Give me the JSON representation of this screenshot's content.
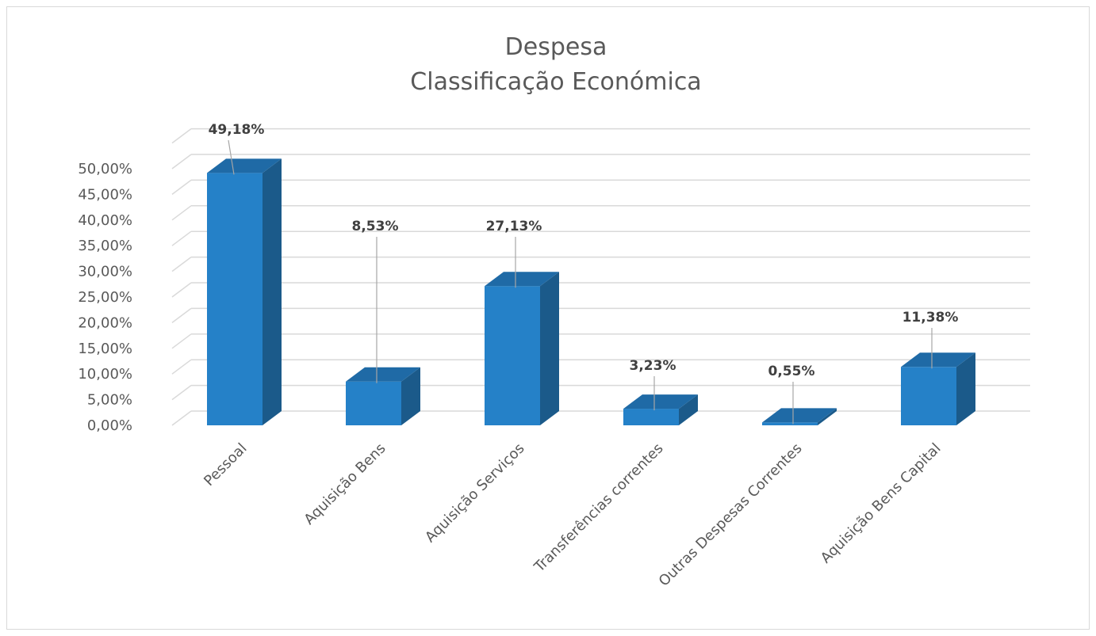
{
  "chart_data": {
    "type": "bar",
    "title": [
      "Despesa",
      "Classificação Económica"
    ],
    "categories": [
      "Pessoal",
      "Aquisição Bens",
      "Aquisição Serviços",
      "Transferências correntes",
      "Outras Despesas Correntes",
      "Aquisição Bens Capital"
    ],
    "values": [
      49.18,
      8.53,
      27.13,
      3.23,
      0.55,
      11.38
    ],
    "data_labels": [
      "49,18%",
      "8,53%",
      "27,13%",
      "3,23%",
      "0,55%",
      "11,38%"
    ],
    "ylim": [
      0,
      50
    ],
    "y_ticks": [
      "0,00%",
      "5,00%",
      "10,00%",
      "15,00%",
      "20,00%",
      "25,00%",
      "30,00%",
      "35,00%",
      "40,00%",
      "45,00%",
      "50,00%"
    ],
    "grid": true,
    "style": "3d-column",
    "colors": {
      "front": "#2581c8",
      "side": "#1b5a8a",
      "top": "#1f6aa6",
      "grid": "#d9d9d9"
    }
  }
}
